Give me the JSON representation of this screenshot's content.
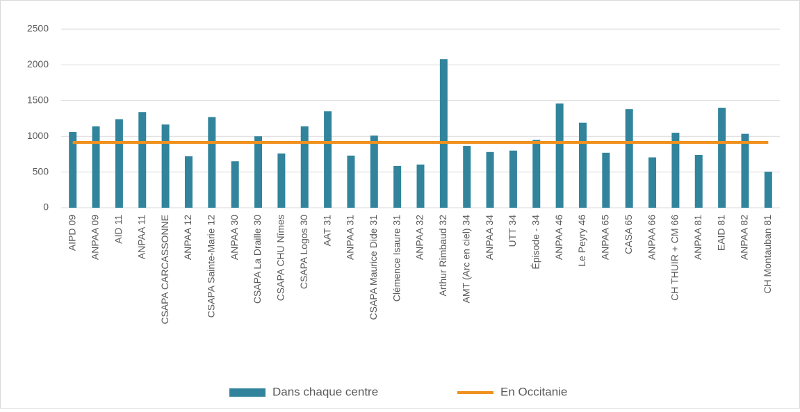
{
  "chart_data": {
    "type": "bar_line",
    "categories": [
      "AIPD 09",
      "ANPAA 09",
      "AID 11",
      "ANPAA 11",
      "CSAPA CARCASSONNE",
      "ANPAA 12",
      "CSAPA Sainte-Marie 12",
      "ANPAA 30",
      "CSAPA La Draille 30",
      "CSAPA CHU Nîmes",
      "CSAPA Logos 30",
      "AAT 31",
      "ANPAA 31",
      "CSAPA Maurice Dide 31",
      "Clémence Isaure 31",
      "ANPAA 32",
      "Arthur Rimbaud 32",
      "AMT (Arc en ciel) 34",
      "ANPAA 34",
      "UTT 34",
      "Épisode - 34",
      "ANPAA 46",
      "Le Peyry 46",
      "ANPAA 65",
      "CASA 65",
      "ANPAA 66",
      "CH THUIR + CM 66",
      "ANPAA 81",
      "EAID 81",
      "ANPAA 82",
      "CH Montauban 81"
    ],
    "series": [
      {
        "name": "Dans chaque centre",
        "type": "bar",
        "color": "#31849b",
        "values": [
          1060,
          1140,
          1240,
          1340,
          1165,
          720,
          1270,
          650,
          1000,
          760,
          1140,
          1350,
          730,
          1010,
          585,
          605,
          2080,
          865,
          780,
          800,
          950,
          1460,
          1190,
          770,
          1380,
          705,
          1050,
          740,
          1400,
          1035,
          505
        ]
      },
      {
        "name": "En Occitanie",
        "type": "line",
        "color": "#f0901e",
        "values": [
          915,
          915,
          915,
          915,
          915,
          915,
          915,
          915,
          915,
          915,
          915,
          915,
          915,
          915,
          915,
          915,
          915,
          915,
          915,
          915,
          915,
          915,
          915,
          915,
          915,
          915,
          915,
          915,
          915,
          915,
          915
        ]
      }
    ],
    "ylim": [
      0,
      2500
    ],
    "yticks": [
      0,
      500,
      1000,
      1500,
      2000,
      2500
    ],
    "grid": true,
    "legend": "bottom"
  }
}
